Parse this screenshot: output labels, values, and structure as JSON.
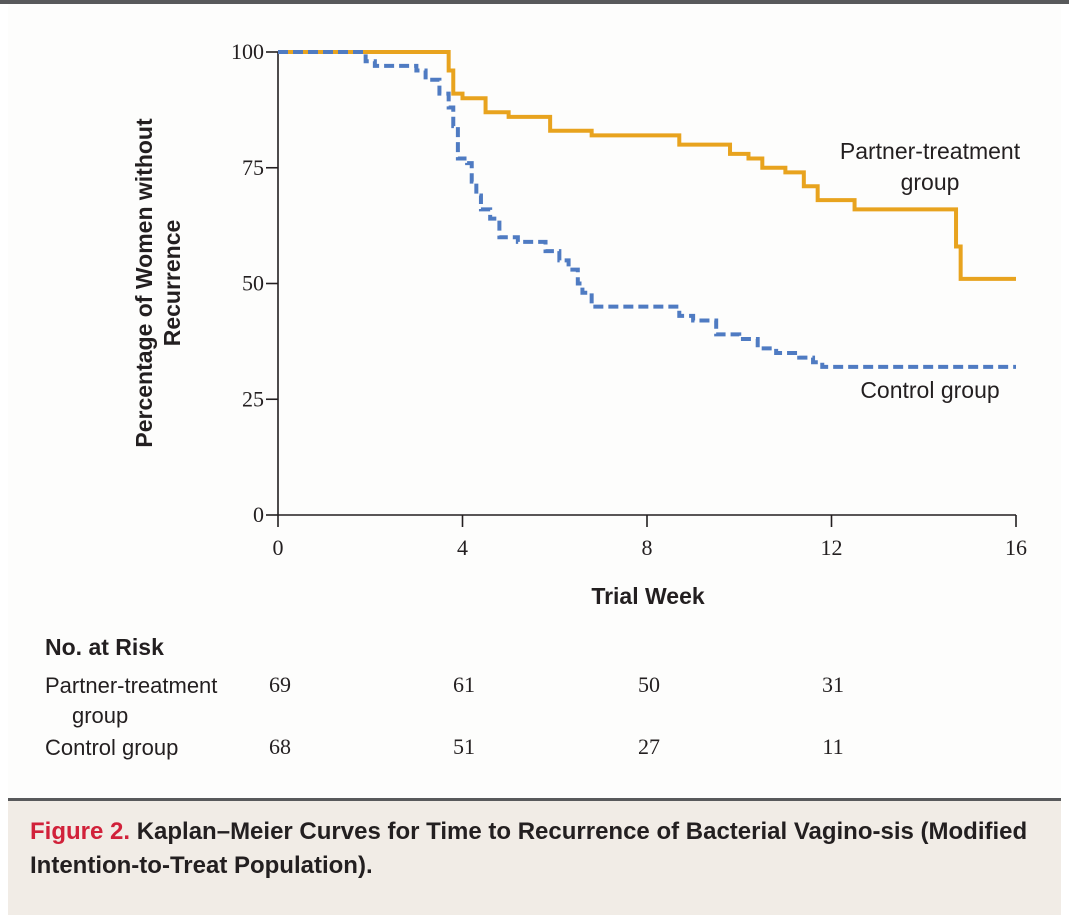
{
  "chart_data": {
    "type": "line",
    "step": true,
    "xlabel": "Trial Week",
    "ylabel_lines": [
      "Percentage of Women without",
      "Recurrence"
    ],
    "xlim": [
      0,
      16
    ],
    "ylim": [
      0,
      100
    ],
    "xticks": [
      0,
      4,
      8,
      12,
      16
    ],
    "yticks": [
      0,
      25,
      50,
      75,
      100
    ],
    "grid": false,
    "series": [
      {
        "name": "Partner-treatment group",
        "color": "#e8a31e",
        "dash": "solid",
        "x": [
          0,
          3.7,
          3.8,
          4.0,
          4.5,
          4.9,
          5.0,
          5.9,
          6.8,
          8.7,
          9.8,
          10.2,
          10.5,
          11.0,
          11.4,
          11.7,
          12.5,
          14.7,
          14.8,
          16.0
        ],
        "y": [
          100,
          96,
          91,
          90,
          87,
          87,
          86,
          83,
          82,
          80,
          78,
          77,
          75,
          74,
          71,
          68,
          66,
          58,
          51,
          51
        ]
      },
      {
        "name": "Control group",
        "color": "#4f7bc2",
        "dash": "dashed",
        "x": [
          0,
          1.9,
          2.1,
          3.0,
          3.2,
          3.5,
          3.7,
          3.8,
          3.9,
          4.1,
          4.2,
          4.3,
          4.4,
          4.6,
          4.8,
          5.2,
          5.8,
          6.1,
          6.3,
          6.5,
          6.6,
          6.8,
          8.7,
          9.0,
          9.5,
          10.0,
          10.4,
          10.8,
          11.3,
          11.6,
          11.8,
          16.0
        ],
        "y": [
          100,
          98,
          97,
          96,
          94,
          91,
          88,
          84,
          77,
          76,
          72,
          69,
          66,
          64,
          60,
          59,
          57,
          55,
          53,
          50,
          48,
          45,
          43,
          42,
          39,
          38,
          36,
          35,
          34,
          33,
          32,
          32
        ]
      }
    ],
    "series_labels": [
      {
        "series": 0,
        "lines": [
          "Partner-treatment",
          "group"
        ]
      },
      {
        "series": 1,
        "lines": [
          "Control group"
        ]
      }
    ],
    "risk_table": {
      "title": "No. at Risk",
      "weeks": [
        0,
        4,
        8,
        12
      ],
      "rows": [
        {
          "label_lines": [
            "Partner-treatment",
            "group"
          ],
          "values": [
            69,
            61,
            50,
            31
          ]
        },
        {
          "label_lines": [
            "Control group"
          ],
          "values": [
            68,
            51,
            27,
            11
          ]
        }
      ]
    }
  },
  "caption": {
    "label": "Figure 2.",
    "text": "Kaplan–Meier Curves for Time to Recurrence of Bacterial Vagino-sis (Modified Intention-to-Treat Population)."
  },
  "colors": {
    "frame_rule": "#58595b",
    "caption_background": "#f1ece6",
    "figure_label": "#d1213a"
  }
}
